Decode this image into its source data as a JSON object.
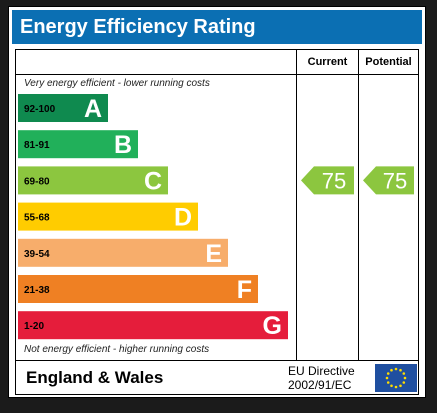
{
  "title": "Energy Efficiency Rating",
  "columns": {
    "current": "Current",
    "potential": "Potential"
  },
  "notes": {
    "top": "Very energy efficient - lower running costs",
    "bottom": "Not energy efficient - higher running costs"
  },
  "footer": {
    "region": "England & Wales",
    "directive_line1": "EU Directive",
    "directive_line2": "2002/91/EC"
  },
  "colors": {
    "header": "#0b6fb3",
    "A": "#0f8a4f",
    "B": "#21b05a",
    "C": "#8cc63f",
    "D": "#ffcc00",
    "E": "#f7ad6b",
    "F": "#ef8023",
    "G": "#e51d3b",
    "flag": "#1f4fa0",
    "stars": "#ffdd00"
  },
  "chart_data": {
    "type": "bar",
    "bands": [
      {
        "letter": "A",
        "range": "92-100"
      },
      {
        "letter": "B",
        "range": "81-91"
      },
      {
        "letter": "C",
        "range": "69-80"
      },
      {
        "letter": "D",
        "range": "55-68"
      },
      {
        "letter": "E",
        "range": "39-54"
      },
      {
        "letter": "F",
        "range": "21-38"
      },
      {
        "letter": "G",
        "range": "1-20"
      }
    ],
    "current": 75,
    "potential": 75,
    "current_band": "C",
    "potential_band": "C"
  }
}
